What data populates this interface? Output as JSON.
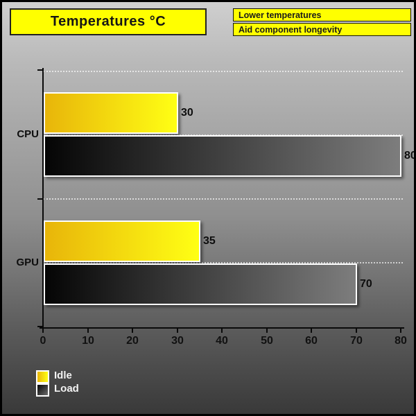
{
  "header": {
    "title": "Temperatures °C",
    "notes": [
      "Lower temperatures",
      "Aid component longevity"
    ]
  },
  "colors": {
    "panel_bg": "#ffff00",
    "idle_gradient_start": "#e8b50a",
    "idle_gradient_end": "#ffff14",
    "load_gradient_start": "#050505",
    "load_gradient_end": "#7d7d7d",
    "bar_border": "#ffffff",
    "gridline": "#ffffff",
    "axis": "#0a0a0a"
  },
  "chart_data": {
    "type": "bar",
    "orientation": "horizontal",
    "title": "Temperatures °C",
    "categories": [
      "CPU",
      "GPU"
    ],
    "series": [
      {
        "name": "Idle",
        "values": [
          30,
          35
        ]
      },
      {
        "name": "Load",
        "values": [
          80,
          70
        ]
      }
    ],
    "xlim": [
      0,
      80
    ],
    "x_ticks": [
      "0",
      "10",
      "20",
      "30",
      "40",
      "50",
      "60",
      "70",
      "80"
    ],
    "value_labels": {
      "CPU": {
        "Idle": "30",
        "Load": "80"
      },
      "GPU": {
        "Idle": "35",
        "Load": "70"
      }
    },
    "grid": "horizontal-dotted-white",
    "legend_position": "bottom-left",
    "legend": [
      "Idle",
      "Load"
    ]
  }
}
